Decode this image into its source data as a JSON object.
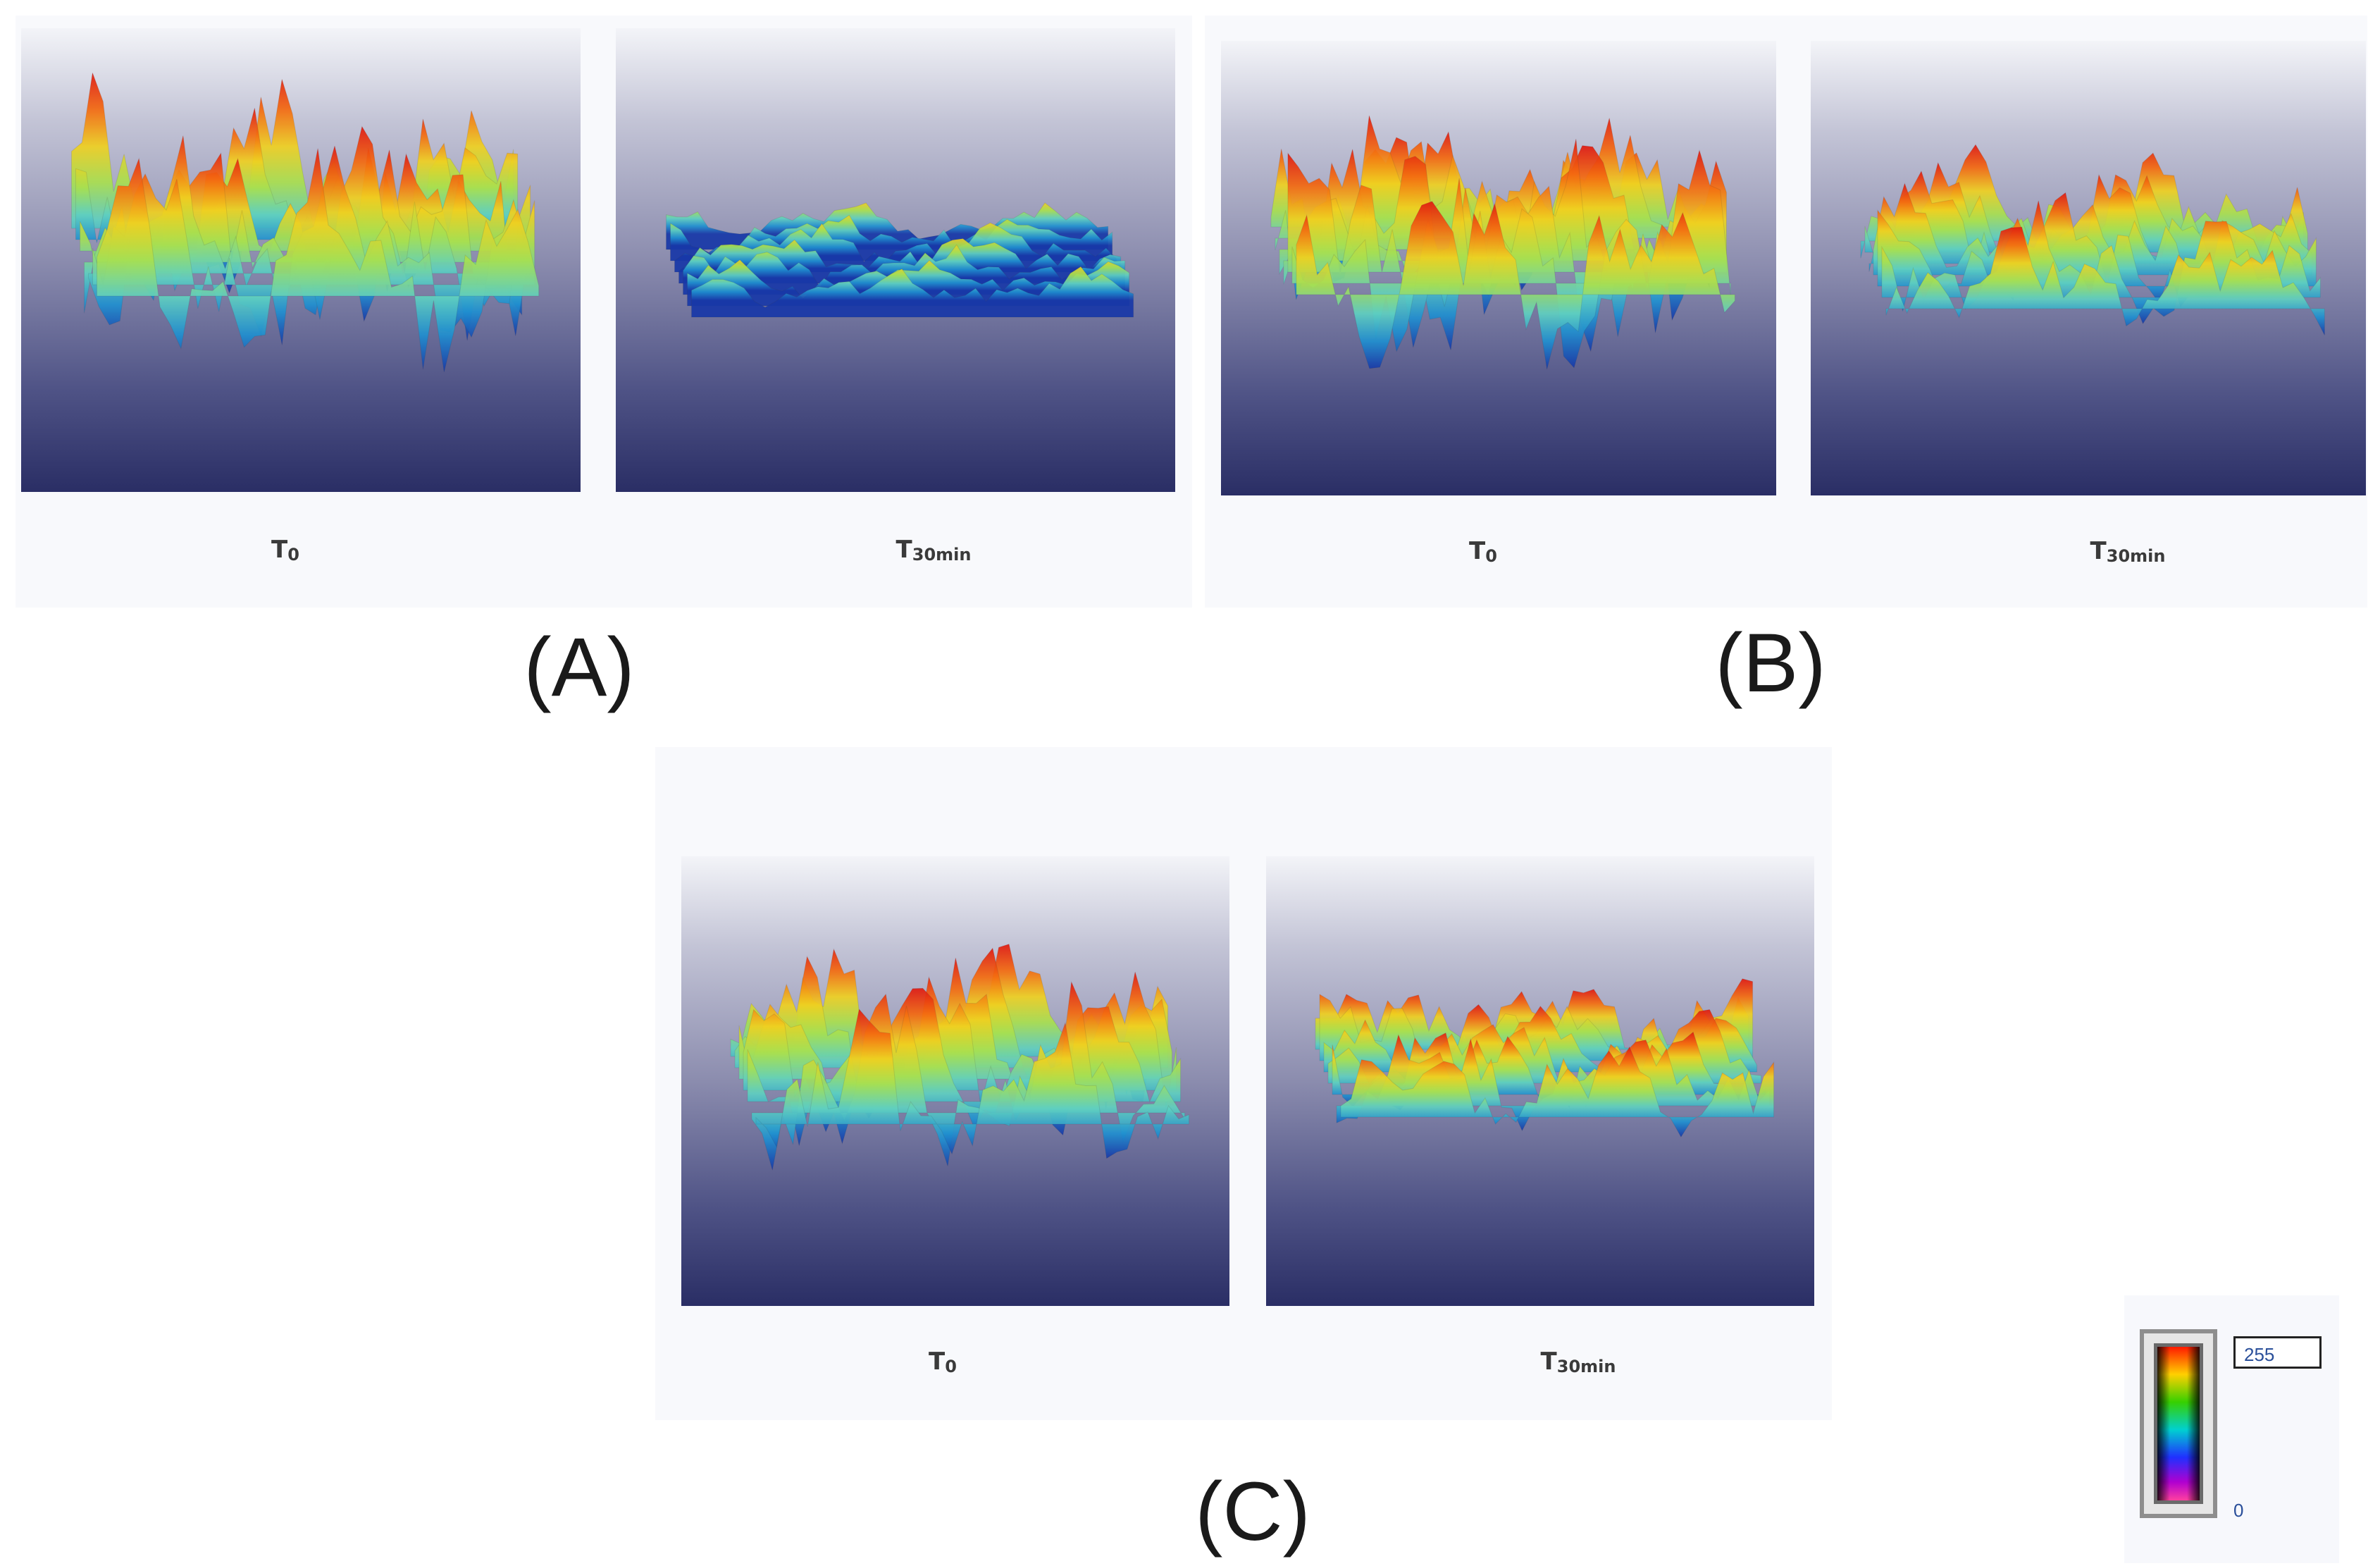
{
  "panels": {
    "A": {
      "letter": "(A)",
      "left": {
        "main": "T",
        "sub": "0"
      },
      "right": {
        "main": "T",
        "sub": "30min"
      }
    },
    "B": {
      "letter": "(B)",
      "left": {
        "main": "T",
        "sub": "0"
      },
      "right": {
        "main": "T",
        "sub": "30min"
      }
    },
    "C": {
      "letter": "(C)",
      "left": {
        "main": "T",
        "sub": "0"
      },
      "right": {
        "main": "T",
        "sub": "30min"
      }
    }
  },
  "colorbar": {
    "max": "255",
    "min": "0",
    "colors": [
      "#ff1a00",
      "#ffd000",
      "#36d000",
      "#00d0d0",
      "#2030ff",
      "#b000d0",
      "#ff40a0"
    ]
  },
  "surface_colors": [
    "#e01810",
    "#f46a10",
    "#f0d020",
    "#a8e050",
    "#60d0c0",
    "#2090d0",
    "#1838a8"
  ]
}
